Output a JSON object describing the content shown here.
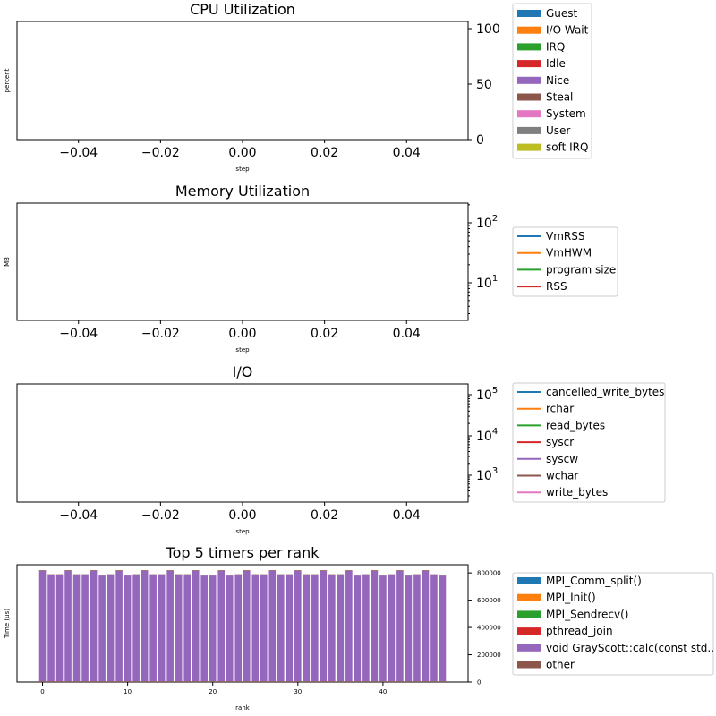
{
  "colors": {
    "blue": "#1f77b4",
    "orange": "#ff7f0e",
    "green": "#2ca02c",
    "red": "#d62728",
    "purple": "#9467bd",
    "brown": "#8c564b",
    "pink": "#e377c2",
    "gray": "#7f7f7f",
    "olive": "#bcbd22"
  },
  "chart_data": [
    {
      "type": "area",
      "title": "CPU Utilization",
      "xlabel": "step",
      "ylabel": "percent",
      "xticks": [
        "−0.04",
        "−0.02",
        "0.00",
        "0.02",
        "0.04"
      ],
      "xlim": [
        -0.055,
        0.055
      ],
      "yticks": [
        "0",
        "50",
        "100"
      ],
      "ylim": [
        0,
        100
      ],
      "yaxis_side": "right",
      "legend": [
        "Guest",
        "I/O Wait",
        "IRQ",
        "Idle",
        "Nice",
        "Steal",
        "System",
        "User",
        "soft IRQ"
      ],
      "legend_type": "patch",
      "series": []
    },
    {
      "type": "line",
      "title": "Memory Utilization",
      "xlabel": "step",
      "ylabel": "MB",
      "xticks": [
        "−0.04",
        "−0.02",
        "0.00",
        "0.02",
        "0.04"
      ],
      "xlim": [
        -0.055,
        0.055
      ],
      "yscale": "log",
      "yticks": [
        {
          "base": "10",
          "exp": "1"
        },
        {
          "base": "10",
          "exp": "2"
        }
      ],
      "yaxis_side": "right",
      "legend": [
        "VmRSS",
        "VmHWM",
        "program size",
        "RSS"
      ],
      "legend_type": "line",
      "series": []
    },
    {
      "type": "line",
      "title": "I/O",
      "xlabel": "step",
      "ylabel": "",
      "xticks": [
        "−0.04",
        "−0.02",
        "0.00",
        "0.02",
        "0.04"
      ],
      "xlim": [
        -0.055,
        0.055
      ],
      "yscale": "log",
      "yticks": [
        {
          "base": "10",
          "exp": "3"
        },
        {
          "base": "10",
          "exp": "4"
        },
        {
          "base": "10",
          "exp": "5"
        }
      ],
      "yaxis_side": "right",
      "legend": [
        "cancelled_write_bytes",
        "rchar",
        "read_bytes",
        "syscr",
        "syscw",
        "wchar",
        "write_bytes"
      ],
      "legend_type": "line",
      "series": []
    },
    {
      "type": "bar",
      "title": "Top 5 timers per rank",
      "xlabel": "rank",
      "ylabel": "Time (us)",
      "xticks": [
        "0",
        "10",
        "20",
        "30",
        "40"
      ],
      "xtick_values": [
        0,
        10,
        20,
        30,
        40
      ],
      "xlim": [
        -3,
        50
      ],
      "yticks": [
        "0",
        "200000",
        "400000",
        "600000",
        "800000"
      ],
      "ytick_values": [
        0,
        200000,
        400000,
        600000,
        800000
      ],
      "ylim": [
        0,
        860000
      ],
      "yaxis_side": "right",
      "legend": [
        "MPI_Comm_split()",
        "MPI_Init()",
        "MPI_Sendrecv()",
        "pthread_join",
        "void GrayScott::calc(const std..",
        "other"
      ],
      "legend_type": "patch",
      "stacked": true,
      "categories": [
        0,
        1,
        2,
        3,
        4,
        5,
        6,
        7,
        8,
        9,
        10,
        11,
        12,
        13,
        14,
        15,
        16,
        17,
        18,
        19,
        20,
        21,
        22,
        23,
        24,
        25,
        26,
        27,
        28,
        29,
        30,
        31,
        32,
        33,
        34,
        35,
        36,
        37,
        38,
        39,
        40,
        41,
        42,
        43,
        44,
        45,
        46,
        47
      ],
      "series": [
        {
          "name": "MPI_Sendrecv()",
          "values": [
            2000,
            2000,
            2000,
            2000,
            2000,
            2000,
            2000,
            2000,
            2000,
            2000,
            2000,
            2000,
            2000,
            2000,
            2000,
            2000,
            2000,
            2000,
            2000,
            2000,
            2000,
            2000,
            2000,
            2000,
            2000,
            2000,
            2000,
            2000,
            2000,
            2000,
            2000,
            2000,
            2000,
            2000,
            2000,
            2000,
            2000,
            2000,
            2000,
            2000,
            2000,
            2000,
            2000,
            2000,
            2000,
            2000,
            2000,
            2000
          ]
        },
        {
          "name": "pthread_join",
          "values": [
            3000,
            3000,
            3000,
            3000,
            3000,
            3000,
            3000,
            3000,
            3000,
            3000,
            3000,
            3000,
            3000,
            3000,
            3000,
            3000,
            3000,
            3000,
            3000,
            3000,
            3000,
            3000,
            3000,
            3000,
            3000,
            3000,
            3000,
            3000,
            3000,
            3000,
            3000,
            3000,
            3000,
            3000,
            3000,
            3000,
            3000,
            3000,
            3000,
            3000,
            3000,
            3000,
            3000,
            3000,
            3000,
            3000,
            3000,
            3000
          ]
        },
        {
          "name": "void GrayScott::calc(const std..",
          "values": [
            810000,
            780000,
            780000,
            810000,
            780000,
            780000,
            810000,
            775000,
            780000,
            810000,
            775000,
            780000,
            810000,
            780000,
            780000,
            810000,
            780000,
            780000,
            810000,
            775000,
            775000,
            810000,
            775000,
            780000,
            810000,
            780000,
            780000,
            810000,
            780000,
            780000,
            810000,
            780000,
            780000,
            810000,
            780000,
            780000,
            810000,
            775000,
            780000,
            810000,
            775000,
            780000,
            810000,
            775000,
            780000,
            810000,
            780000,
            775000
          ]
        },
        {
          "name": "other",
          "values": [
            5000,
            5000,
            5000,
            5000,
            5000,
            5000,
            5000,
            5000,
            5000,
            5000,
            5000,
            5000,
            5000,
            5000,
            5000,
            5000,
            5000,
            5000,
            5000,
            5000,
            5000,
            5000,
            5000,
            5000,
            5000,
            5000,
            5000,
            5000,
            5000,
            5000,
            5000,
            5000,
            5000,
            5000,
            5000,
            5000,
            5000,
            5000,
            5000,
            5000,
            5000,
            5000,
            5000,
            5000,
            5000,
            5000,
            5000,
            5000
          ]
        }
      ],
      "series_colors": [
        "green",
        "red",
        "purple",
        "brown"
      ]
    }
  ]
}
